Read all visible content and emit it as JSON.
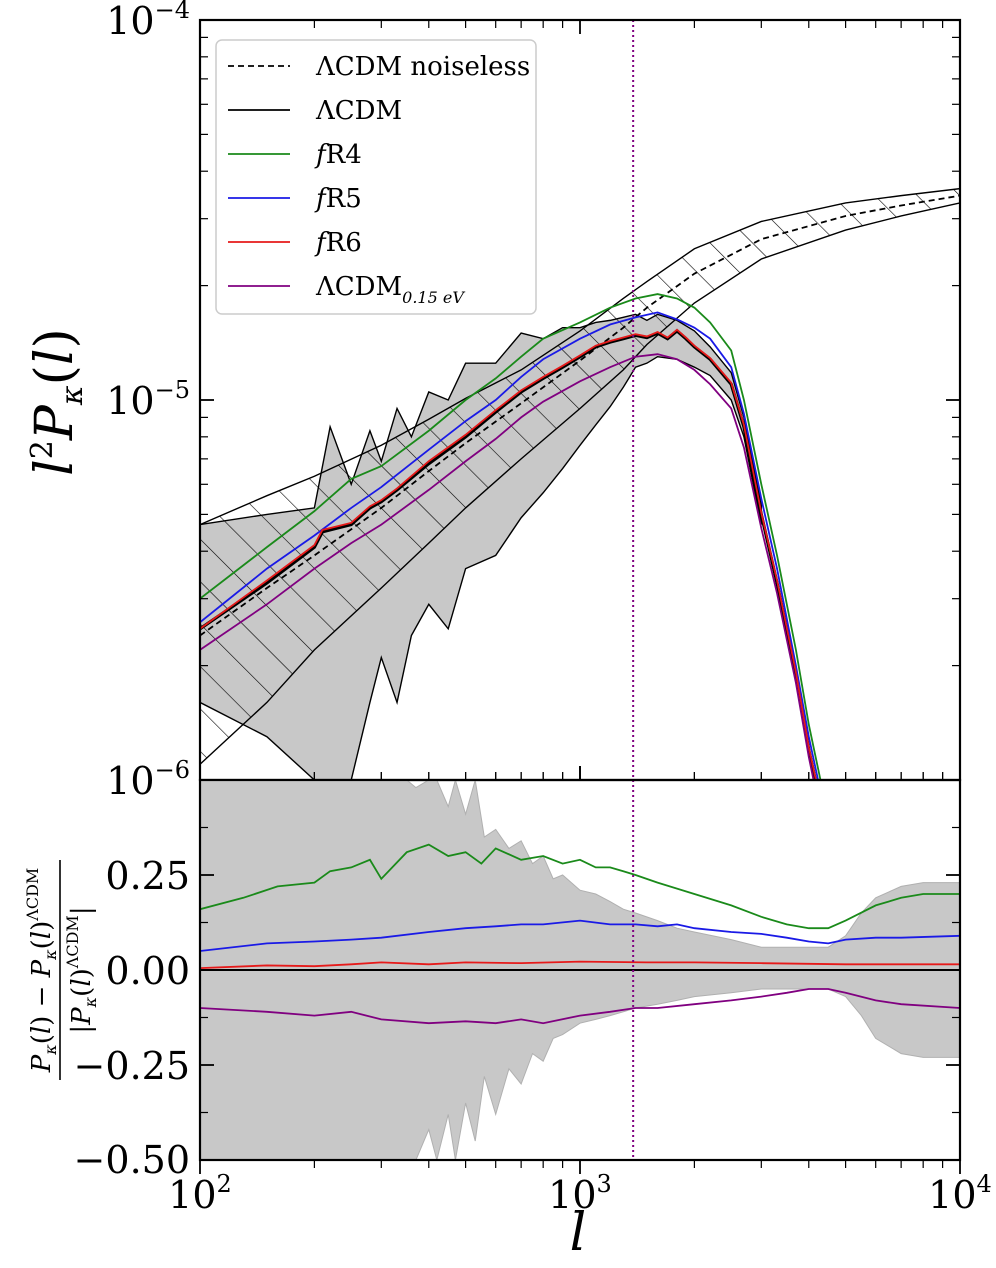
{
  "chart_data": [
    {
      "type": "line",
      "panel": "top",
      "xscale": "log",
      "yscale": "log",
      "xlim": [
        100,
        10000
      ],
      "ylim": [
        1e-06,
        0.0001
      ],
      "ylabel": "l²Pκ(l)",
      "y_ticks": [
        {
          "value": 1e-06,
          "base": "10",
          "exp": "−6"
        },
        {
          "value": 1e-05,
          "base": "10",
          "exp": "−5"
        },
        {
          "value": 0.0001,
          "base": "10",
          "exp": "−4"
        }
      ],
      "vline_x": 1380,
      "legend_position": "upper-left",
      "series": [
        {
          "name": "ΛCDM noiseless",
          "color": "#000000",
          "style": "dashed",
          "x": [
            100,
            150,
            200,
            300,
            400,
            500,
            700,
            1000,
            1300,
            1500,
            2000,
            3000,
            5000,
            7000,
            10000
          ],
          "y": [
            2.4e-06,
            3.2e-06,
            3.9e-06,
            5.2e-06,
            6.5e-06,
            7.7e-06,
            9.8e-06,
            1.27e-05,
            1.55e-05,
            1.75e-05,
            2.15e-05,
            2.65e-05,
            3.05e-05,
            3.25e-05,
            3.45e-05
          ]
        },
        {
          "name": "ΛCDM",
          "color": "#000000",
          "style": "solid",
          "x": [
            100,
            150,
            200,
            210,
            250,
            280,
            300,
            330,
            400,
            500,
            600,
            700,
            800,
            900,
            1000,
            1100,
            1200,
            1300,
            1400,
            1500,
            1600,
            1700,
            1800,
            1900,
            2000,
            2200,
            2500,
            2700,
            3000,
            3300,
            3700,
            4000,
            4500
          ],
          "y": [
            2.5e-06,
            3.3e-06,
            4.1e-06,
            4.5e-06,
            4.7e-06,
            5.2e-06,
            5.4e-06,
            5.8e-06,
            6.8e-06,
            8e-06,
            9.3e-06,
            1.05e-05,
            1.14e-05,
            1.22e-05,
            1.3e-05,
            1.38e-05,
            1.42e-05,
            1.45e-05,
            1.48e-05,
            1.46e-05,
            1.5e-05,
            1.45e-05,
            1.52e-05,
            1.45e-05,
            1.38e-05,
            1.28e-05,
            1.1e-05,
            8.5e-06,
            5e-06,
            3.3e-06,
            1.9e-06,
            1.2e-06,
            7e-07
          ]
        },
        {
          "name": "fR4",
          "color": "#1a8a1a",
          "style": "solid",
          "x": [
            100,
            150,
            200,
            250,
            300,
            400,
            500,
            600,
            700,
            800,
            1000,
            1200,
            1400,
            1600,
            1800,
            2000,
            2200,
            2500,
            2700,
            3000,
            3300,
            3700,
            4000,
            4500
          ],
          "y": [
            3e-06,
            4.1e-06,
            5.1e-06,
            6.2e-06,
            6.7e-06,
            8.3e-06,
            1e-05,
            1.14e-05,
            1.3e-05,
            1.45e-05,
            1.6e-05,
            1.75e-05,
            1.85e-05,
            1.9e-05,
            1.85e-05,
            1.75e-05,
            1.6e-05,
            1.35e-05,
            1e-05,
            6e-06,
            3.9e-06,
            2.2e-06,
            1.4e-06,
            8e-07
          ]
        },
        {
          "name": "fR5",
          "color": "#1a1ae6",
          "style": "solid",
          "x": [
            100,
            150,
            200,
            250,
            300,
            400,
            500,
            600,
            700,
            800,
            1000,
            1200,
            1400,
            1600,
            1800,
            2000,
            2200,
            2500,
            2700,
            3000,
            3300,
            3700,
            4000,
            4500
          ],
          "y": [
            2.6e-06,
            3.6e-06,
            4.4e-06,
            5.2e-06,
            5.9e-06,
            7.4e-06,
            8.8e-06,
            1e-05,
            1.15e-05,
            1.28e-05,
            1.45e-05,
            1.58e-05,
            1.65e-05,
            1.7e-05,
            1.63e-05,
            1.55e-05,
            1.45e-05,
            1.22e-05,
            9.2e-06,
            5.5e-06,
            3.6e-06,
            2e-06,
            1.3e-06,
            7.5e-07
          ]
        },
        {
          "name": "fR6",
          "color": "#e61a1a",
          "style": "solid",
          "x": [
            100,
            150,
            200,
            210,
            250,
            280,
            300,
            330,
            400,
            500,
            600,
            700,
            800,
            900,
            1000,
            1100,
            1200,
            1300,
            1400,
            1500,
            1600,
            1700,
            1800,
            1900,
            2000,
            2200,
            2500,
            2700,
            3000,
            3300,
            3700,
            4000,
            4500
          ],
          "y": [
            2.5e-06,
            3.35e-06,
            4.15e-06,
            4.55e-06,
            4.75e-06,
            5.25e-06,
            5.45e-06,
            5.85e-06,
            6.9e-06,
            8.1e-06,
            9.4e-06,
            1.06e-05,
            1.15e-05,
            1.23e-05,
            1.31e-05,
            1.39e-05,
            1.43e-05,
            1.46e-05,
            1.49e-05,
            1.47e-05,
            1.51e-05,
            1.46e-05,
            1.53e-05,
            1.46e-05,
            1.39e-05,
            1.29e-05,
            1.11e-05,
            8.6e-06,
            5.05e-06,
            3.35e-06,
            1.92e-06,
            1.22e-06,
            7.1e-07
          ]
        },
        {
          "name": "ΛCDM₀.₁₅ eV",
          "color": "#800080",
          "style": "solid",
          "x": [
            100,
            150,
            200,
            250,
            300,
            400,
            500,
            600,
            700,
            800,
            1000,
            1200,
            1400,
            1600,
            1800,
            2000,
            2200,
            2500,
            2700,
            3000,
            3300,
            3700,
            4000,
            4500
          ],
          "y": [
            2.2e-06,
            2.9e-06,
            3.6e-06,
            4.2e-06,
            4.7e-06,
            5.8e-06,
            6.9e-06,
            7.9e-06,
            9e-06,
            9.9e-06,
            1.12e-05,
            1.22e-05,
            1.3e-05,
            1.32e-05,
            1.28e-05,
            1.2e-05,
            1.1e-05,
            9.5e-06,
            7.5e-06,
            4.6e-06,
            3.1e-06,
            1.8e-06,
            1.15e-06,
            6.5e-07
          ]
        }
      ],
      "bands": [
        {
          "label": "ΛCDM noiseless hatched",
          "style": "hatch",
          "x": [
            100,
            150,
            200,
            300,
            400,
            500,
            700,
            1000,
            1300,
            1500,
            2000,
            3000,
            5000,
            7000,
            10000
          ],
          "upper": [
            4.7e-06,
            5.6e-06,
            6.3e-06,
            7.6e-06,
            8.9e-06,
            1.01e-05,
            1.2e-05,
            1.52e-05,
            1.85e-05,
            2.05e-05,
            2.5e-05,
            2.95e-05,
            3.3e-05,
            3.45e-05,
            3.6e-05
          ],
          "lower": [
            1.1e-06,
            1.6e-06,
            2.2e-06,
            3.2e-06,
            4.2e-06,
            5.2e-06,
            7e-06,
            9.5e-06,
            1.2e-05,
            1.4e-05,
            1.8e-05,
            2.35e-05,
            2.8e-05,
            3.05e-05,
            3.3e-05
          ]
        },
        {
          "label": "ΛCDM noisy grey",
          "style": "fill",
          "x": [
            100,
            150,
            200,
            220,
            250,
            280,
            300,
            330,
            360,
            400,
            450,
            500,
            600,
            700,
            800,
            900,
            1000,
            1100,
            1200,
            1300,
            1400,
            1500,
            1600,
            1800,
            2000,
            2200,
            2500,
            2700,
            3000
          ],
          "upper": [
            4.7e-06,
            5e-06,
            5.2e-06,
            8.5e-06,
            6e-06,
            8.3e-06,
            6.9e-06,
            9.5e-06,
            8e-06,
            1.05e-05,
            1e-05,
            1.25e-05,
            1.25e-05,
            1.5e-05,
            1.45e-05,
            1.55e-05,
            1.55e-05,
            1.6e-05,
            1.62e-05,
            1.65e-05,
            1.68e-05,
            1.62e-05,
            1.68e-05,
            1.62e-05,
            1.52e-05,
            1.38e-05,
            1.18e-05,
            9e-06,
            5.3e-06
          ],
          "lower": [
            1.6e-06,
            1.3e-06,
            1e-06,
            1e-06,
            1e-06,
            1.6e-06,
            2.1e-06,
            1.6e-06,
            2.4e-06,
            2.9e-06,
            2.5e-06,
            3.6e-06,
            3.9e-06,
            4.9e-06,
            5.7e-06,
            6.6e-06,
            7.6e-06,
            8.6e-06,
            9.6e-06,
            1.08e-05,
            1.22e-05,
            1.25e-05,
            1.3e-05,
            1.28e-05,
            1.22e-05,
            1.16e-05,
            1e-05,
            8e-06,
            4.7e-06
          ]
        }
      ]
    },
    {
      "type": "line",
      "panel": "bottom",
      "xscale": "log",
      "yscale": "linear",
      "xlim": [
        100,
        10000
      ],
      "ylim": [
        -0.5,
        0.5
      ],
      "xlabel": "l",
      "ylabel": "(Pκ(l) − Pκ(l)^ΛCDM) / |Pκ(l)^ΛCDM|",
      "x_ticks": [
        {
          "value": 100,
          "base": "10",
          "exp": "2"
        },
        {
          "value": 1000,
          "base": "10",
          "exp": "3"
        },
        {
          "value": 10000,
          "base": "10",
          "exp": "4"
        }
      ],
      "y_ticks": [
        {
          "value": 0.25,
          "label": "0.25"
        },
        {
          "value": 0.0,
          "label": "0.00"
        },
        {
          "value": -0.25,
          "label": "−0.25"
        },
        {
          "value": -0.5,
          "label": "−0.50"
        }
      ],
      "vline_x": 1380,
      "zero_line": true,
      "series": [
        {
          "name": "fR4",
          "color": "#1a8a1a",
          "x": [
            100,
            130,
            160,
            200,
            220,
            250,
            280,
            300,
            350,
            400,
            450,
            500,
            550,
            600,
            700,
            800,
            900,
            1000,
            1100,
            1200,
            1300,
            1400,
            1600,
            2000,
            2500,
            3000,
            3500,
            4000,
            4500,
            5000,
            6000,
            7000,
            8000,
            10000
          ],
          "y": [
            0.16,
            0.19,
            0.22,
            0.23,
            0.26,
            0.27,
            0.29,
            0.24,
            0.31,
            0.33,
            0.3,
            0.31,
            0.28,
            0.32,
            0.29,
            0.3,
            0.28,
            0.29,
            0.27,
            0.27,
            0.26,
            0.25,
            0.23,
            0.2,
            0.17,
            0.14,
            0.12,
            0.11,
            0.11,
            0.13,
            0.17,
            0.19,
            0.2,
            0.2
          ]
        },
        {
          "name": "fR5",
          "color": "#1a1ae6",
          "x": [
            100,
            150,
            200,
            250,
            300,
            400,
            500,
            600,
            700,
            800,
            1000,
            1200,
            1400,
            1600,
            1800,
            2000,
            2500,
            3000,
            3500,
            4000,
            4500,
            5000,
            6000,
            7000,
            10000
          ],
          "y": [
            0.05,
            0.07,
            0.075,
            0.08,
            0.085,
            0.1,
            0.11,
            0.115,
            0.12,
            0.12,
            0.13,
            0.12,
            0.12,
            0.115,
            0.12,
            0.11,
            0.1,
            0.095,
            0.085,
            0.075,
            0.07,
            0.08,
            0.085,
            0.085,
            0.09
          ]
        },
        {
          "name": "fR6",
          "color": "#e61a1a",
          "x": [
            100,
            150,
            200,
            250,
            300,
            400,
            500,
            700,
            1000,
            1500,
            2000,
            3000,
            5000,
            7000,
            10000
          ],
          "y": [
            0.005,
            0.012,
            0.01,
            0.015,
            0.02,
            0.015,
            0.02,
            0.018,
            0.022,
            0.02,
            0.02,
            0.018,
            0.015,
            0.015,
            0.015
          ]
        },
        {
          "name": "ΛCDM₀.₁₅ eV",
          "color": "#800080",
          "x": [
            100,
            150,
            200,
            250,
            300,
            400,
            500,
            600,
            700,
            800,
            1000,
            1200,
            1400,
            1600,
            2000,
            2500,
            3000,
            3500,
            4000,
            4500,
            5000,
            6000,
            7000,
            10000
          ],
          "y": [
            -0.1,
            -0.11,
            -0.12,
            -0.11,
            -0.13,
            -0.14,
            -0.135,
            -0.14,
            -0.13,
            -0.14,
            -0.12,
            -0.11,
            -0.1,
            -0.1,
            -0.09,
            -0.08,
            -0.07,
            -0.06,
            -0.05,
            -0.05,
            -0.06,
            -0.08,
            -0.09,
            -0.1
          ]
        }
      ],
      "band": {
        "x": [
          100,
          150,
          200,
          250,
          280,
          300,
          330,
          350,
          370,
          400,
          420,
          450,
          470,
          500,
          530,
          560,
          600,
          650,
          700,
          750,
          800,
          850,
          900,
          1000,
          1100,
          1200,
          1300,
          1400,
          1600,
          1800,
          2000,
          2500,
          3000,
          3500,
          4000,
          4500,
          5000,
          5500,
          6000,
          7000,
          8000,
          10000
        ],
        "upper": [
          0.5,
          0.5,
          0.5,
          0.5,
          0.5,
          0.5,
          0.5,
          0.5,
          0.48,
          0.5,
          0.5,
          0.43,
          0.5,
          0.41,
          0.5,
          0.35,
          0.37,
          0.32,
          0.34,
          0.28,
          0.3,
          0.24,
          0.25,
          0.21,
          0.2,
          0.18,
          0.16,
          0.15,
          0.13,
          0.11,
          0.1,
          0.08,
          0.06,
          0.06,
          0.06,
          0.06,
          0.09,
          0.15,
          0.19,
          0.22,
          0.23,
          0.23
        ],
        "lower": [
          -0.5,
          -0.5,
          -0.5,
          -0.5,
          -0.5,
          -0.5,
          -0.5,
          -0.5,
          -0.5,
          -0.42,
          -0.5,
          -0.38,
          -0.5,
          -0.35,
          -0.45,
          -0.28,
          -0.38,
          -0.26,
          -0.3,
          -0.22,
          -0.24,
          -0.18,
          -0.17,
          -0.14,
          -0.13,
          -0.12,
          -0.11,
          -0.1,
          -0.09,
          -0.08,
          -0.07,
          -0.06,
          -0.05,
          -0.05,
          -0.05,
          -0.05,
          -0.07,
          -0.12,
          -0.18,
          -0.22,
          -0.23,
          -0.23
        ]
      }
    }
  ],
  "legend": [
    {
      "label": "ΛCDM noiseless",
      "color": "#000000",
      "style": "dashed"
    },
    {
      "label": "ΛCDM",
      "color": "#000000",
      "style": "solid"
    },
    {
      "prefix": "f",
      "label": "R4",
      "color": "#1a8a1a",
      "style": "solid"
    },
    {
      "prefix": "f",
      "label": "R5",
      "color": "#1a1ae6",
      "style": "solid"
    },
    {
      "prefix": "f",
      "label": "R6",
      "color": "#e61a1a",
      "style": "solid"
    },
    {
      "label": "ΛCDM",
      "sub": "0.15 eV",
      "color": "#800080",
      "style": "solid"
    }
  ]
}
